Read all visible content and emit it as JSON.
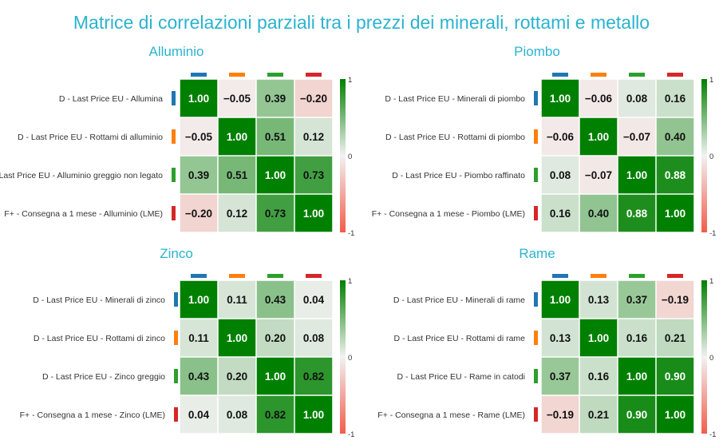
{
  "title": "Matrice di correlazioni parziali tra i prezzi dei minerali, rottami e metallo",
  "colors": {
    "title": "#2bb3cf",
    "positive": "#008000",
    "neutral": "#f2f2f2",
    "negative": "#f25c4a",
    "series": [
      "#1f77b4",
      "#ff7f0e",
      "#2ca02c",
      "#d62728"
    ]
  },
  "colorbar": {
    "max_label": "1",
    "mid_label": "0",
    "min_label": "-1"
  },
  "chart_data": [
    {
      "type": "heatmap",
      "title": "Alluminio",
      "rows": [
        "D - Last Price EU - Allumina",
        "D - Last Price EU - Rottami di alluminio",
        "D - Last Price EU - Alluminio greggio non legato",
        "F+ - Consegna a 1 mese - Alluminio (LME)"
      ],
      "values": [
        [
          1.0,
          -0.05,
          0.39,
          -0.2
        ],
        [
          -0.05,
          1.0,
          0.51,
          0.12
        ],
        [
          0.39,
          0.51,
          1.0,
          0.73
        ],
        [
          -0.2,
          0.12,
          0.73,
          1.0
        ]
      ],
      "zlim": [
        -1,
        1
      ]
    },
    {
      "type": "heatmap",
      "title": "Piombo",
      "rows": [
        "D - Last Price EU - Minerali di piombo",
        "D - Last Price EU - Rottami di piombo",
        "D - Last Price EU - Piombo raffinato",
        "F+ - Consegna a 1 mese - Piombo (LME)"
      ],
      "values": [
        [
          1.0,
          -0.06,
          0.08,
          0.16
        ],
        [
          -0.06,
          1.0,
          -0.07,
          0.4
        ],
        [
          0.08,
          -0.07,
          1.0,
          0.88
        ],
        [
          0.16,
          0.4,
          0.88,
          1.0
        ]
      ],
      "zlim": [
        -1,
        1
      ]
    },
    {
      "type": "heatmap",
      "title": "Zinco",
      "rows": [
        "D - Last Price EU - Minerali di zinco",
        "D - Last Price EU - Rottami di zinco",
        "D - Last Price EU - Zinco greggio",
        "F+ - Consegna a 1 mese - Zinco (LME)"
      ],
      "values": [
        [
          1.0,
          0.11,
          0.43,
          0.04
        ],
        [
          0.11,
          1.0,
          0.2,
          0.08
        ],
        [
          0.43,
          0.2,
          1.0,
          0.82
        ],
        [
          0.04,
          0.08,
          0.82,
          1.0
        ]
      ],
      "zlim": [
        -1,
        1
      ]
    },
    {
      "type": "heatmap",
      "title": "Rame",
      "rows": [
        "D - Last Price EU - Minerali di rame",
        "D - Last Price EU - Rottami di rame",
        "D - Last Price EU - Rame in catodi",
        "F+ - Consegna a 1 mese - Rame (LME)"
      ],
      "values": [
        [
          1.0,
          0.13,
          0.37,
          -0.19
        ],
        [
          0.13,
          1.0,
          0.16,
          0.21
        ],
        [
          0.37,
          0.16,
          1.0,
          0.9
        ],
        [
          -0.19,
          0.21,
          0.9,
          1.0
        ]
      ],
      "zlim": [
        -1,
        1
      ]
    }
  ]
}
